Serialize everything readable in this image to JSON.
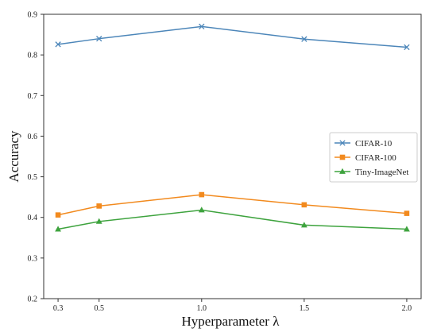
{
  "chart_data": {
    "type": "line",
    "title": "",
    "xlabel": "Hyperparameter λ",
    "ylabel": "Accuracy",
    "x": [
      0.3,
      0.5,
      1.0,
      1.5,
      2.0
    ],
    "x_tick_labels": [
      "0.3",
      "0.5",
      "1.0",
      "1.5",
      "2.0"
    ],
    "xlim": [
      0.23,
      2.07
    ],
    "ylim": [
      0.2,
      0.9
    ],
    "y_ticks": [
      0.2,
      0.3,
      0.4,
      0.5,
      0.6,
      0.7,
      0.8,
      0.9
    ],
    "y_tick_labels": [
      "0.2",
      "0.3",
      "0.4",
      "0.5",
      "0.6",
      "0.7",
      "0.8",
      "0.9"
    ],
    "grid": false,
    "legend_position": "center-right",
    "series": [
      {
        "name": "CIFAR-10",
        "values": [
          0.826,
          0.84,
          0.87,
          0.839,
          0.819
        ],
        "color": "#4c86b9",
        "marker": "x"
      },
      {
        "name": "CIFAR-100",
        "values": [
          0.406,
          0.428,
          0.456,
          0.431,
          0.41
        ],
        "color": "#f28a1e",
        "marker": "square"
      },
      {
        "name": "Tiny-ImageNet",
        "values": [
          0.371,
          0.39,
          0.418,
          0.381,
          0.371
        ],
        "color": "#3ea33e",
        "marker": "triangle"
      }
    ]
  }
}
